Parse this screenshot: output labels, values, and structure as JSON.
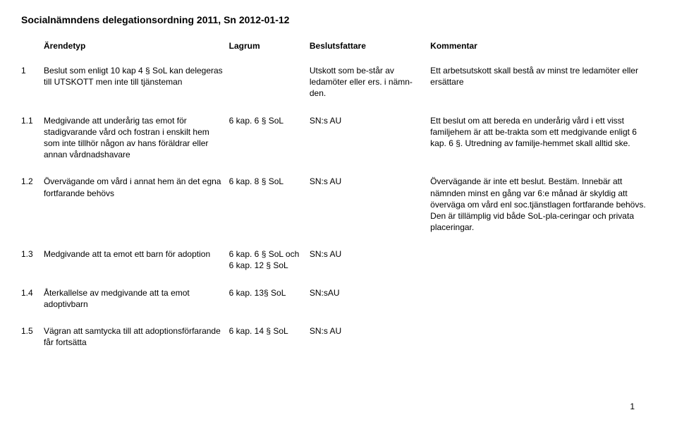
{
  "title": "Socialnämndens delegationsordning 2011, Sn 2012-01-12",
  "headers": {
    "arendetyp": "Ärendetyp",
    "lagrum": "Lagrum",
    "beslutsfattare": "Beslutsfattare",
    "kommentar": "Kommentar"
  },
  "rows": [
    {
      "num": "1",
      "arendetyp": "Beslut som enligt 10 kap 4 § SoL kan delegeras till UTSKOTT men inte till tjänsteman",
      "lagrum": "",
      "beslutsfattare": "Utskott som be-står av ledamöter eller ers. i nämn-den.",
      "kommentar": "Ett arbetsutskott skall bestå av minst tre ledamöter eller ersättare"
    },
    {
      "num": "1.1",
      "arendetyp": "Medgivande att underårig tas emot för stadigvarande vård och fostran i enskilt hem som inte tillhör någon av hans föräldrar eller annan vårdnadshavare",
      "lagrum": "6 kap. 6 § SoL",
      "beslutsfattare": "SN:s AU",
      "kommentar": "Ett beslut om att bereda en underårig vård i ett visst familjehem är att be-trakta som ett medgivande enligt 6 kap. 6 §. Utredning av familje-hemmet skall alltid ske."
    },
    {
      "num": "1.2",
      "arendetyp": "Övervägande om vård i annat hem än det egna fortfarande behövs",
      "lagrum": "6 kap. 8 § SoL",
      "beslutsfattare": "SN:s AU",
      "kommentar": "Övervägande är inte ett beslut. Bestäm. Innebär att nämnden minst en gång var 6:e månad är skyldig att överväga om vård enl soc.tjänstlagen fortfarande behövs. Den är tillämplig vid både SoL-pla-ceringar och privata placeringar."
    },
    {
      "num": "1.3",
      "arendetyp": "Medgivande att ta emot ett barn för adoption",
      "lagrum": "6 kap. 6 § SoL och 6 kap. 12 § SoL",
      "beslutsfattare": "SN:s AU",
      "kommentar": ""
    },
    {
      "num": "1.4",
      "arendetyp": "Återkallelse av medgivande att ta emot adoptivbarn",
      "lagrum": "6 kap. 13§ SoL",
      "beslutsfattare": "SN:sAU",
      "kommentar": ""
    },
    {
      "num": "1.5",
      "arendetyp": "Vägran att samtycka till att adoptionsförfarande får fortsätta",
      "lagrum": "6 kap. 14 § SoL",
      "beslutsfattare": "SN:s AU",
      "kommentar": ""
    }
  ],
  "page_number": "1"
}
